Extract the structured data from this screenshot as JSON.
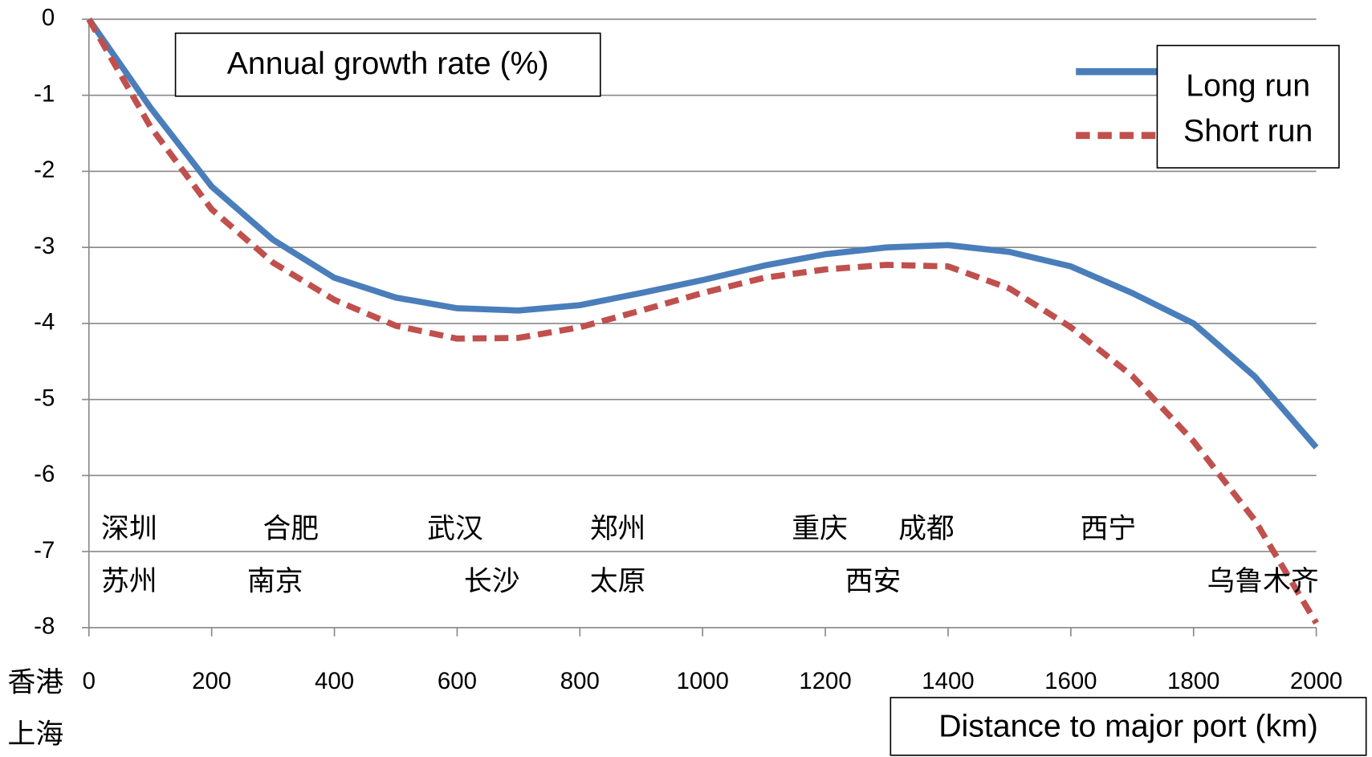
{
  "chart_data": {
    "type": "line",
    "ylabel": "Annual growth rate (%)",
    "xlabel": "Distance to major port (km)",
    "x": [
      0,
      100,
      200,
      300,
      400,
      500,
      600,
      700,
      800,
      900,
      1000,
      1100,
      1200,
      1300,
      1400,
      1500,
      1600,
      1700,
      1800,
      1900,
      2000
    ],
    "series": [
      {
        "name": "Long run",
        "color": "#4a7ebb",
        "dashed": false,
        "values": [
          0,
          -1.16,
          -2.2,
          -2.9,
          -3.4,
          -3.66,
          -3.8,
          -3.83,
          -3.76,
          -3.6,
          -3.43,
          -3.24,
          -3.09,
          -3.0,
          -2.97,
          -3.06,
          -3.25,
          -3.6,
          -4.0,
          -4.7,
          -5.63
        ]
      },
      {
        "name": "Short run",
        "color": "#c0504d",
        "dashed": true,
        "values": [
          0,
          -1.41,
          -2.5,
          -3.2,
          -3.69,
          -4.03,
          -4.2,
          -4.19,
          -4.05,
          -3.83,
          -3.6,
          -3.4,
          -3.29,
          -3.23,
          -3.25,
          -3.54,
          -4.05,
          -4.69,
          -5.55,
          -6.59,
          -7.94
        ]
      }
    ],
    "xlim": [
      0,
      2000
    ],
    "xticks": [
      0,
      200,
      400,
      600,
      800,
      1000,
      1200,
      1400,
      1600,
      1800,
      2000
    ],
    "ylim": [
      -8,
      0
    ],
    "yticks": [
      0,
      -1,
      -2,
      -3,
      -4,
      -5,
      -6,
      -7,
      -8
    ],
    "grid": true,
    "legend": "upper right",
    "annotations": [
      "深圳",
      "合肥",
      "武汉",
      "郑州",
      "重庆",
      "成都",
      "西宁",
      "苏州",
      "南京",
      "长沙",
      "太原",
      "西安",
      "乌鲁木齐",
      "香港",
      "上海"
    ]
  }
}
